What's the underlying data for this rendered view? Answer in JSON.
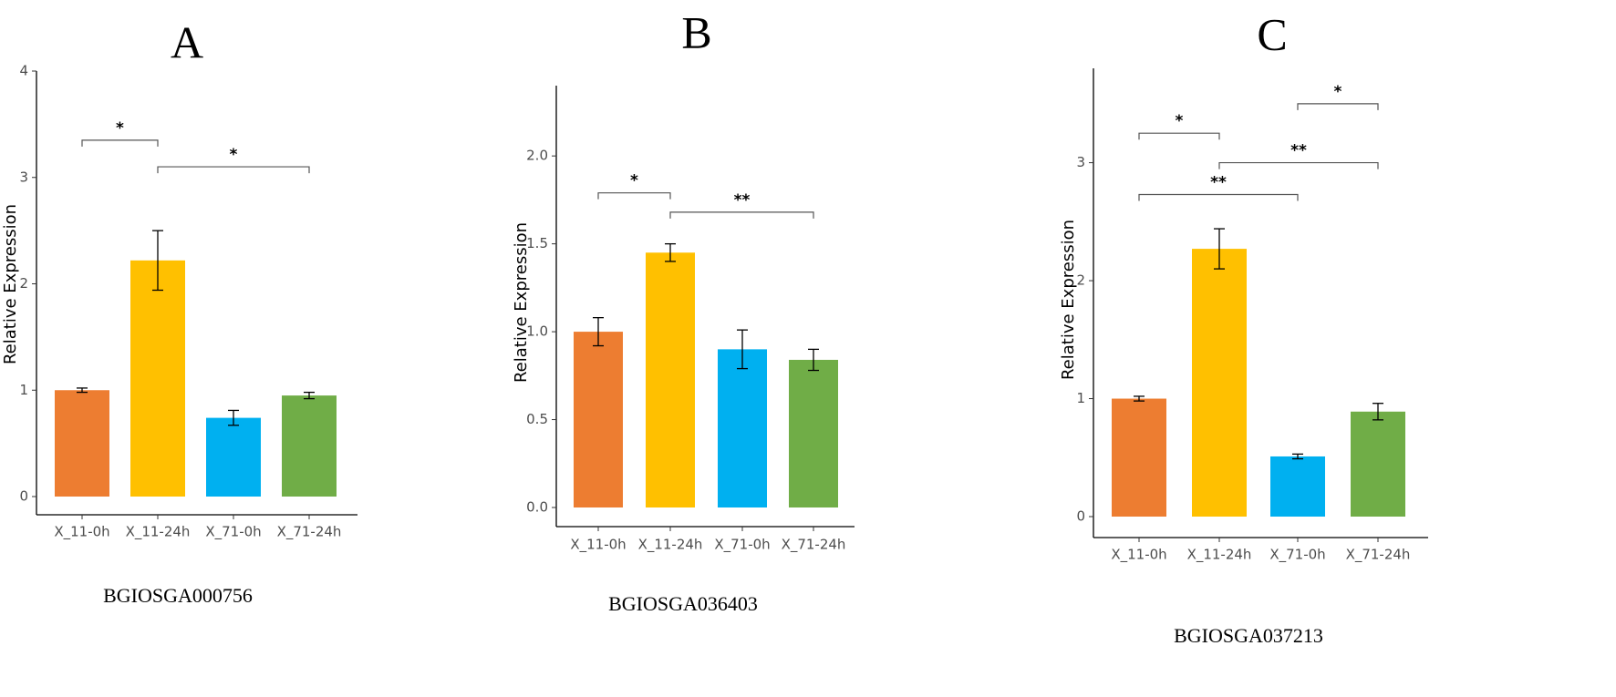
{
  "colors": {
    "X_11-0h": "#ED7D31",
    "X_11-24h": "#FFC000",
    "X_71-0h": "#00B0F0",
    "X_71-24h": "#70AD47"
  },
  "chart_data": [
    {
      "type": "bar",
      "panel": "A",
      "gene": "BGIOSGA000756",
      "categories": [
        "X_11-0h",
        "X_11-24h",
        "X_71-0h",
        "X_71-24h"
      ],
      "values": [
        1.0,
        2.22,
        0.74,
        0.95
      ],
      "errors": [
        0.02,
        0.28,
        0.07,
        0.03
      ],
      "ylabel": "Relative Expression",
      "xlabel": "",
      "ylim": [
        0,
        4
      ],
      "yticks": [
        0,
        1,
        2,
        3,
        4
      ],
      "ytick_labels": [
        "0",
        "1",
        "2",
        "3",
        "4"
      ],
      "significance": [
        {
          "from": 0,
          "to": 1,
          "y": 3.35,
          "label": "*"
        },
        {
          "from": 1,
          "to": 3,
          "y": 3.1,
          "label": "*"
        }
      ]
    },
    {
      "type": "bar",
      "panel": "B",
      "gene": "BGIOSGA036403",
      "categories": [
        "X_11-0h",
        "X_11-24h",
        "X_71-0h",
        "X_71-24h"
      ],
      "values": [
        1.0,
        1.45,
        0.9,
        0.84
      ],
      "errors": [
        0.08,
        0.05,
        0.11,
        0.06
      ],
      "ylabel": "Relative Expression",
      "xlabel": "",
      "ylim": [
        0,
        2.4
      ],
      "yticks": [
        0,
        0.5,
        1,
        1.5,
        2
      ],
      "ytick_labels": [
        "0.0",
        "0.5",
        "1.0",
        "1.5",
        "2.0"
      ],
      "significance": [
        {
          "from": 0,
          "to": 1,
          "y": 1.79,
          "label": "*"
        },
        {
          "from": 1,
          "to": 3,
          "y": 1.68,
          "label": "**"
        }
      ]
    },
    {
      "type": "bar",
      "panel": "C",
      "gene": "BGIOSGA037213",
      "categories": [
        "X_11-0h",
        "X_11-24h",
        "X_71-0h",
        "X_71-24h"
      ],
      "values": [
        1.0,
        2.27,
        0.51,
        0.89
      ],
      "errors": [
        0.02,
        0.17,
        0.02,
        0.07
      ],
      "ylabel": "Relative Expression",
      "xlabel": "",
      "ylim": [
        0,
        3.8
      ],
      "yticks": [
        0,
        1,
        2,
        3
      ],
      "ytick_labels": [
        "0",
        "1",
        "2",
        "3"
      ],
      "significance": [
        {
          "from": 2,
          "to": 3,
          "y": 3.5,
          "label": "*"
        },
        {
          "from": 0,
          "to": 1,
          "y": 3.25,
          "label": "*"
        },
        {
          "from": 1,
          "to": 3,
          "y": 3.0,
          "label": "**"
        },
        {
          "from": 0,
          "to": 2,
          "y": 2.73,
          "label": "**"
        }
      ]
    }
  ]
}
